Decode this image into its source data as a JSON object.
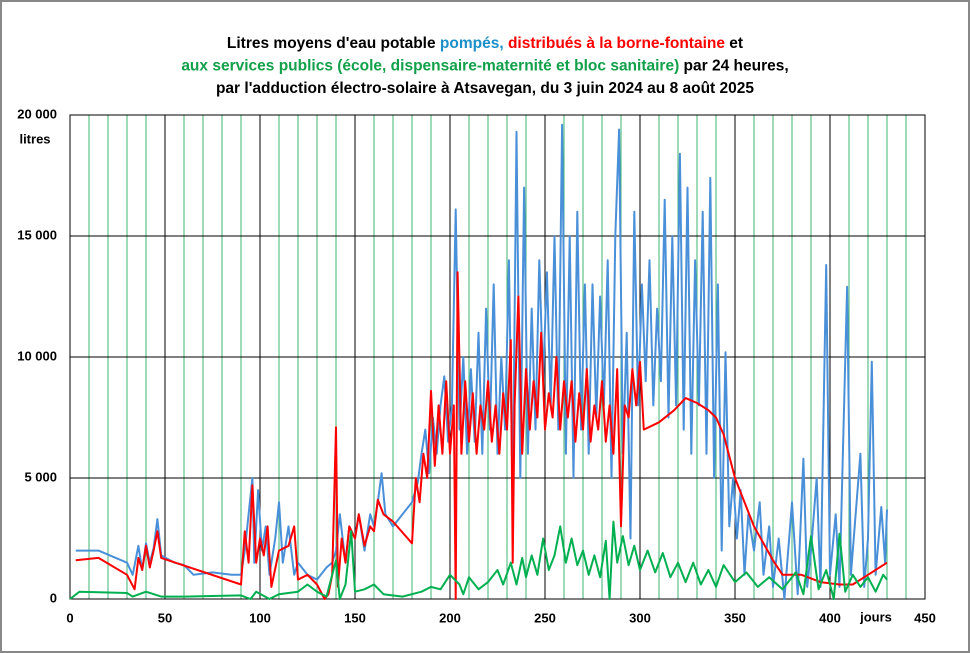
{
  "chart_data": {
    "type": "line",
    "title_lines": [
      [
        {
          "text": "Litres moyens d'eau potable ",
          "color": "#000000"
        },
        {
          "text": "pompés, ",
          "color": "#1a8fc9"
        },
        {
          "text": "distribués à la borne-fontaine",
          "color": "#ff0000"
        },
        {
          "text": " et",
          "color": "#000000"
        }
      ],
      [
        {
          "text": "aux services publics (école, dispensaire-maternité et bloc sanitaire)",
          "color": "#12a04a"
        },
        {
          "text": " par 24 heures,",
          "color": "#000000"
        }
      ],
      [
        {
          "text": "par l'adduction électro-solaire à Atsavegan, du 3 juin 2024 au 8 août 2025",
          "color": "#000000"
        }
      ]
    ],
    "y_label": "litres",
    "x_label": "jours",
    "xlim": [
      0,
      450
    ],
    "xticks": [
      0,
      50,
      100,
      150,
      200,
      250,
      300,
      350,
      400,
      450
    ],
    "ylim": [
      0,
      20000
    ],
    "yticks": [
      0,
      {
        "value": 5000,
        "label": "5 000"
      },
      {
        "value": 10000,
        "label": "10 000"
      },
      {
        "value": 15000,
        "label": "15 000"
      },
      {
        "value": 20000,
        "label": "20 000"
      }
    ],
    "grid": true,
    "series": [
      {
        "color": "#4a90d9",
        "x": [
          3,
          15,
          30,
          33,
          36,
          38,
          40,
          42,
          44,
          46,
          48,
          55,
          60,
          65,
          75,
          85,
          90,
          92,
          94,
          96,
          97,
          99,
          101,
          103,
          105,
          108,
          110,
          112,
          115,
          118,
          120,
          125,
          130,
          135,
          138,
          140,
          142,
          145,
          147,
          150,
          152,
          155,
          158,
          160,
          162,
          164,
          166,
          170,
          175,
          180,
          183,
          185,
          187,
          189,
          191,
          193,
          195,
          197,
          199,
          201,
          203,
          205,
          207,
          209,
          211,
          213,
          215,
          217,
          219,
          221,
          223,
          225,
          227,
          229,
          231,
          233,
          235,
          237,
          239,
          241,
          243,
          245,
          247,
          249,
          251,
          253,
          255,
          257,
          259,
          261,
          263,
          265,
          267,
          269,
          271,
          273,
          275,
          277,
          279,
          281,
          283,
          285,
          287,
          289,
          291,
          293,
          295,
          297,
          299,
          301,
          303,
          305,
          307,
          309,
          311,
          313,
          315,
          317,
          319,
          321,
          323,
          325,
          327,
          329,
          331,
          333,
          335,
          337,
          339,
          341,
          343,
          345,
          347,
          349,
          351,
          353,
          355,
          357,
          360,
          363,
          365,
          368,
          370,
          373,
          376,
          380,
          383,
          386,
          388,
          390,
          393,
          395,
          398,
          400,
          403,
          405,
          409,
          411,
          414,
          416,
          418,
          420,
          422,
          424,
          427,
          429,
          430
        ],
        "values": [
          2000,
          2000,
          1500,
          1000,
          2200,
          1200,
          2300,
          1500,
          2100,
          3300,
          1800,
          1500,
          1400,
          1000,
          1100,
          1000,
          1000,
          2000,
          3500,
          5000,
          1500,
          4500,
          2000,
          3000,
          1000,
          2500,
          4000,
          1500,
          3000,
          1000,
          1500,
          1000,
          800,
          1300,
          1500,
          2000,
          3500,
          1500,
          3000,
          2500,
          3500,
          2000,
          3500,
          3000,
          4000,
          5200,
          3500,
          3000,
          3500,
          4000,
          4800,
          6000,
          7000,
          5200,
          7500,
          6000,
          8000,
          9200,
          6500,
          8000,
          16100,
          7000,
          10000,
          6000,
          9500,
          6500,
          11000,
          6000,
          12000,
          7000,
          13000,
          6000,
          10000,
          7000,
          14000,
          4000,
          19300,
          5000,
          17000,
          6000,
          12000,
          7000,
          14000,
          9000,
          13500,
          8000,
          15000,
          7000,
          19600,
          6000,
          15000,
          5000,
          16000,
          7000,
          13000,
          6000,
          13000,
          7500,
          12500,
          8000,
          14000,
          5000,
          15000,
          19400,
          6000,
          11000,
          2500,
          16000,
          8000,
          13000,
          9000,
          14000,
          8000,
          12000,
          9000,
          16500,
          7500,
          15000,
          8000,
          18400,
          7000,
          17000,
          6000,
          14000,
          8000,
          16000,
          6000,
          17400,
          5000,
          13000,
          2000,
          10200,
          3000,
          5000,
          2500,
          4500,
          1000,
          3500,
          2000,
          4000,
          1000,
          3000,
          500,
          2500,
          0,
          4000,
          200,
          5800,
          500,
          2000,
          5000,
          500,
          13800,
          1000,
          3500,
          500,
          12900,
          1000,
          4000,
          6000,
          500,
          2500,
          9800,
          1000,
          3800,
          1500,
          3700
        ]
      },
      {
        "color": "#ff0000",
        "x": [
          3,
          15,
          30,
          34,
          36,
          38,
          40,
          42,
          44,
          46,
          48,
          90,
          92,
          94,
          96,
          98,
          100,
          102,
          104,
          106,
          110,
          115,
          118,
          120,
          125,
          130,
          134,
          136,
          138,
          140,
          141,
          143,
          145,
          147,
          150,
          152,
          155,
          158,
          160,
          162,
          165,
          170,
          180,
          182,
          184,
          186,
          188,
          190,
          192,
          194,
          196,
          198,
          200,
          202,
          203,
          204,
          206,
          208,
          210,
          212,
          214,
          216,
          218,
          220,
          222,
          224,
          226,
          228,
          230,
          232,
          233,
          234,
          236,
          238,
          240,
          242,
          244,
          246,
          248,
          250,
          252,
          254,
          256,
          258,
          260,
          262,
          264,
          266,
          268,
          270,
          272,
          274,
          276,
          278,
          280,
          282,
          284,
          286,
          288,
          290,
          292,
          294,
          296,
          298,
          300,
          302,
          310,
          318,
          324,
          330,
          336,
          340,
          344,
          350,
          360,
          370,
          375,
          385,
          395,
          405,
          412,
          420,
          430
        ],
        "values": [
          1600,
          1700,
          1000,
          400,
          1700,
          1200,
          2200,
          1300,
          2000,
          2800,
          1700,
          600,
          2800,
          1500,
          4700,
          1500,
          2500,
          1800,
          3000,
          500,
          2000,
          2200,
          3000,
          800,
          1000,
          600,
          0,
          200,
          1000,
          7100,
          500,
          2500,
          1500,
          3000,
          2500,
          3500,
          2200,
          3000,
          2800,
          4100,
          3500,
          3200,
          2300,
          5000,
          4000,
          6000,
          5000,
          8600,
          5500,
          8000,
          6000,
          9000,
          6000,
          8000,
          0,
          13500,
          6000,
          9000,
          6500,
          8500,
          6000,
          8000,
          7000,
          9000,
          6500,
          8000,
          6000,
          8500,
          7000,
          10700,
          1500,
          8000,
          12500,
          6000,
          9500,
          7000,
          9000,
          7500,
          11000,
          7000,
          8500,
          7500,
          10000,
          7000,
          9000,
          7500,
          9000,
          6500,
          8500,
          7000,
          9500,
          6500,
          8000,
          7000,
          9000,
          6500,
          8000,
          6000,
          9500,
          3000,
          8000,
          7500,
          9500,
          8000,
          9800,
          7000,
          7300,
          7800,
          8300,
          8100,
          7800,
          7500,
          6800,
          5000,
          3000,
          1600,
          1000,
          1000,
          700,
          600,
          600,
          1000,
          1500
        ]
      },
      {
        "color": "#00b050",
        "x": [
          0,
          5,
          30,
          33,
          40,
          48,
          60,
          90,
          95,
          98,
          105,
          110,
          120,
          125,
          130,
          135,
          140,
          142,
          145,
          148,
          150,
          155,
          160,
          165,
          175,
          185,
          190,
          195,
          200,
          205,
          207,
          210,
          215,
          220,
          225,
          228,
          232,
          235,
          238,
          240,
          243,
          246,
          249,
          252,
          255,
          258,
          261,
          264,
          267,
          270,
          273,
          276,
          279,
          282,
          284,
          286,
          288,
          291,
          294,
          297,
          300,
          304,
          308,
          312,
          316,
          320,
          324,
          328,
          332,
          336,
          340,
          344,
          350,
          356,
          362,
          368,
          375,
          382,
          386,
          390,
          394,
          398,
          402,
          405,
          408,
          412,
          416,
          420,
          424,
          428,
          430
        ],
        "values": [
          0,
          300,
          250,
          100,
          300,
          100,
          100,
          150,
          0,
          300,
          0,
          200,
          300,
          600,
          300,
          100,
          1600,
          0,
          600,
          2800,
          300,
          400,
          600,
          200,
          100,
          300,
          500,
          400,
          1000,
          600,
          200,
          900,
          400,
          700,
          1200,
          600,
          1500,
          600,
          1700,
          900,
          1800,
          1000,
          2500,
          1200,
          1800,
          3000,
          1500,
          2500,
          1400,
          2000,
          1000,
          1800,
          900,
          2400,
          0,
          3200,
          1500,
          2600,
          1400,
          2200,
          1200,
          2000,
          1100,
          1900,
          900,
          1500,
          700,
          1500,
          600,
          1200,
          500,
          1400,
          700,
          1100,
          500,
          900,
          400,
          1100,
          200,
          2600,
          400,
          1200,
          0,
          2700,
          300,
          1000,
          500,
          900,
          300,
          1000,
          800
        ]
      }
    ]
  }
}
